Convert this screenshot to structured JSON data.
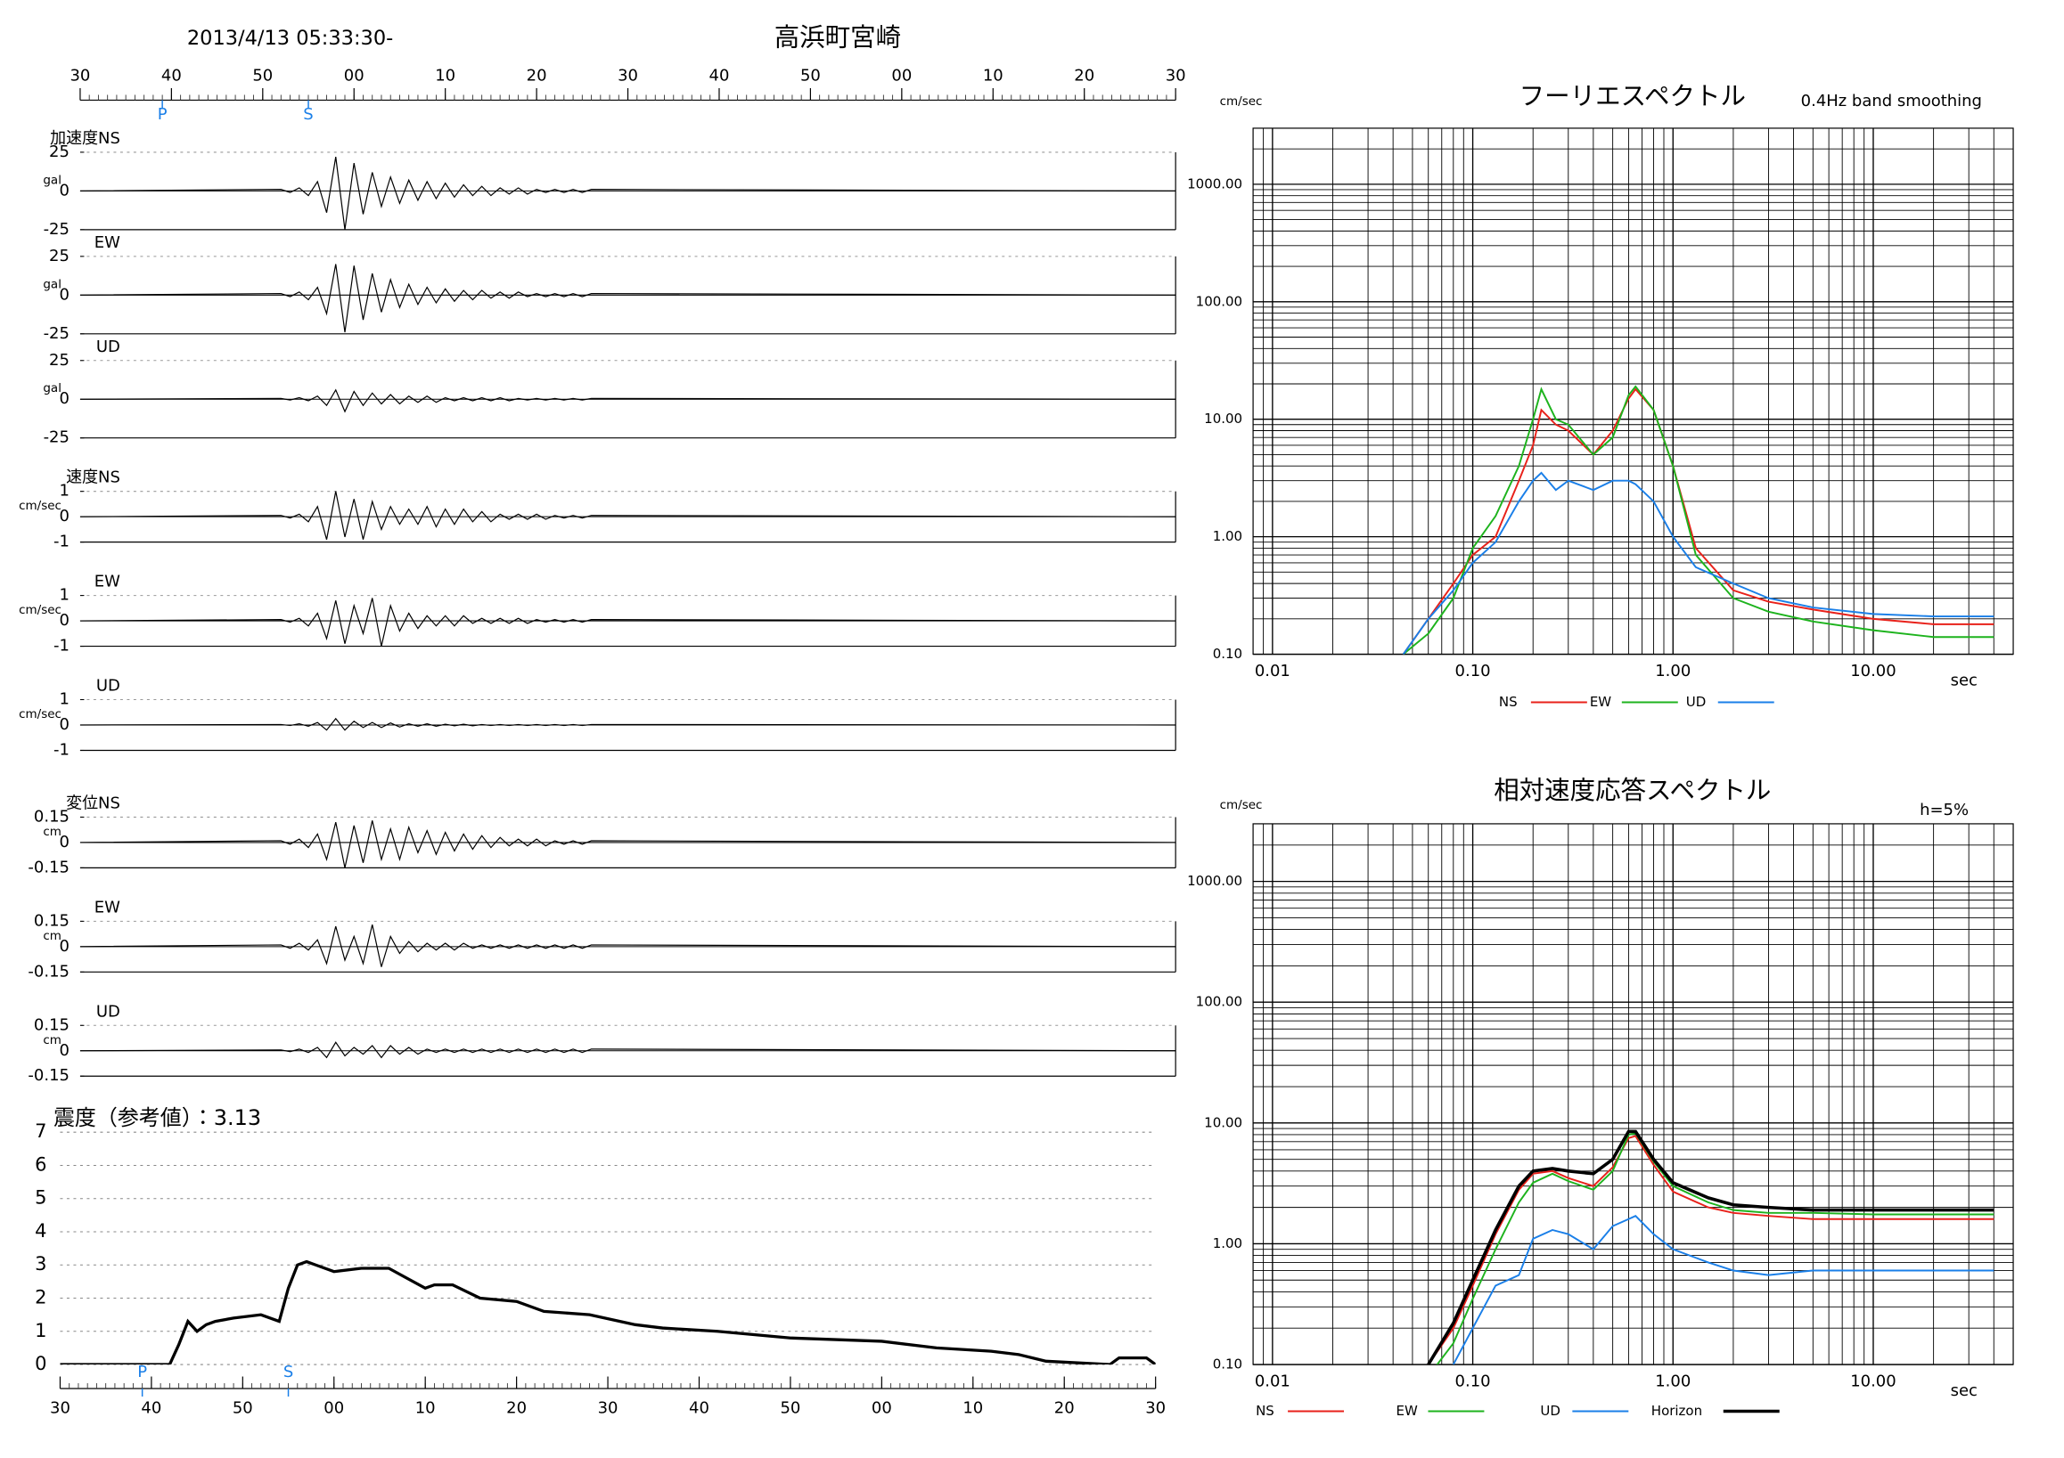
{
  "chart_data": [
    {
      "type": "waveform",
      "title": "2013/4/13 05:33:30-",
      "station": "高浜町宮崎",
      "xlim": [
        0,
        120
      ],
      "xticks": [
        {
          "value": 0,
          "label": "30"
        },
        {
          "value": 10,
          "label": "40"
        },
        {
          "value": 20,
          "label": "50"
        },
        {
          "value": 30,
          "label": "00"
        },
        {
          "value": 40,
          "label": "10"
        },
        {
          "value": 50,
          "label": "20"
        },
        {
          "value": 60,
          "label": "30"
        },
        {
          "value": 70,
          "label": "40"
        },
        {
          "value": 80,
          "label": "50"
        },
        {
          "value": 90,
          "label": "00"
        },
        {
          "value": 100,
          "label": "10"
        },
        {
          "value": 110,
          "label": "20"
        },
        {
          "value": 120,
          "label": "30"
        }
      ],
      "markers": [
        {
          "label": "P",
          "x": 9
        },
        {
          "label": "S",
          "x": 25
        }
      ],
      "color": "#000000",
      "x": [
        0,
        22,
        23,
        24,
        25,
        26,
        27,
        28,
        29,
        30,
        31,
        32,
        33,
        34,
        35,
        36,
        37,
        38,
        39,
        40,
        41,
        42,
        43,
        44,
        45,
        46,
        47,
        48,
        49,
        50,
        51,
        52,
        53,
        54,
        55,
        56,
        120
      ],
      "panels": [
        {
          "label": "加速度NS",
          "unit": "gal",
          "ylim": [
            -25,
            25
          ],
          "yticks": [
            -25,
            0,
            25
          ],
          "values": [
            0,
            1,
            -1,
            2,
            -3,
            6,
            -14,
            22,
            -25,
            18,
            -15,
            12,
            -10,
            9,
            -8,
            7,
            -6,
            6,
            -5,
            5,
            -4,
            4,
            -3,
            3,
            -3,
            2,
            -2,
            2,
            -2,
            1,
            -1,
            1,
            -1,
            1,
            -1,
            1,
            0
          ]
        },
        {
          "label": "EW",
          "unit": "gal",
          "ylim": [
            -25,
            25
          ],
          "yticks": [
            -25,
            0,
            25
          ],
          "values": [
            0,
            1,
            -1,
            2,
            -3,
            5,
            -12,
            20,
            -24,
            19,
            -16,
            14,
            -11,
            10,
            -8,
            7,
            -6,
            5,
            -5,
            4,
            -4,
            3,
            -3,
            3,
            -2,
            2,
            -2,
            2,
            -1,
            1,
            -1,
            1,
            -1,
            1,
            -1,
            1,
            0
          ]
        },
        {
          "label": "UD",
          "unit": "gal",
          "ylim": [
            -25,
            25
          ],
          "yticks": [
            -25,
            0,
            25
          ],
          "values": [
            0,
            0.5,
            -0.5,
            1,
            -1,
            2,
            -4,
            6,
            -8,
            5,
            -4,
            4,
            -3,
            3,
            -3,
            2,
            -2,
            2,
            -2,
            1,
            -1,
            1,
            -1,
            1,
            -1,
            1,
            -1,
            0.5,
            -0.5,
            0.5,
            -0.5,
            0.5,
            -0.5,
            0.5,
            -0.5,
            0.5,
            0
          ]
        },
        {
          "label": "速度NS",
          "unit": "cm/sec",
          "ylim": [
            -1,
            1
          ],
          "yticks": [
            -1,
            0,
            1
          ],
          "values": [
            0,
            0.05,
            -0.05,
            0.1,
            -0.2,
            0.4,
            -0.9,
            1,
            -0.8,
            0.7,
            -0.9,
            0.6,
            -0.5,
            0.4,
            -0.3,
            0.3,
            -0.3,
            0.4,
            -0.4,
            0.3,
            -0.3,
            0.3,
            -0.2,
            0.2,
            -0.2,
            0.1,
            -0.1,
            0.1,
            -0.1,
            0.1,
            -0.1,
            0.05,
            -0.05,
            0.05,
            -0.05,
            0.05,
            0
          ]
        },
        {
          "label": "EW",
          "unit": "cm/sec",
          "ylim": [
            -1,
            1
          ],
          "yticks": [
            -1,
            0,
            1
          ],
          "values": [
            0,
            0.05,
            -0.05,
            0.1,
            -0.2,
            0.3,
            -0.7,
            0.8,
            -0.9,
            0.6,
            -0.5,
            0.9,
            -1,
            0.6,
            -0.4,
            0.3,
            -0.3,
            0.2,
            -0.2,
            0.2,
            -0.2,
            0.2,
            -0.1,
            0.1,
            -0.1,
            0.1,
            -0.1,
            0.1,
            -0.1,
            0.05,
            -0.05,
            0.05,
            -0.05,
            0.05,
            -0.05,
            0.05,
            0
          ]
        },
        {
          "label": "UD",
          "unit": "cm/sec",
          "ylim": [
            -1,
            1
          ],
          "yticks": [
            -1,
            0,
            1
          ],
          "values": [
            0,
            0.02,
            -0.02,
            0.05,
            -0.05,
            0.1,
            -0.2,
            0.25,
            -0.2,
            0.15,
            -0.1,
            0.1,
            -0.1,
            0.08,
            -0.08,
            0.05,
            -0.05,
            0.05,
            -0.05,
            0.03,
            -0.03,
            0.03,
            -0.03,
            0.02,
            -0.02,
            0.02,
            -0.02,
            0.02,
            -0.02,
            0.02,
            -0.02,
            0.02,
            -0.02,
            0.02,
            -0.02,
            0.02,
            0
          ]
        },
        {
          "label": "変位NS",
          "unit": "cm",
          "ylim": [
            -0.15,
            0.15
          ],
          "yticks": [
            -0.15,
            0,
            0.15
          ],
          "values": [
            0,
            0.01,
            -0.01,
            0.02,
            -0.03,
            0.05,
            -0.1,
            0.12,
            -0.15,
            0.1,
            -0.12,
            0.13,
            -0.1,
            0.08,
            -0.1,
            0.09,
            -0.06,
            0.07,
            -0.07,
            0.06,
            -0.05,
            0.05,
            -0.04,
            0.04,
            -0.03,
            0.03,
            -0.02,
            0.02,
            -0.02,
            0.02,
            -0.02,
            0.01,
            -0.01,
            0.01,
            -0.01,
            0.01,
            0
          ]
        },
        {
          "label": "EW",
          "unit": "cm",
          "ylim": [
            -0.15,
            0.15
          ],
          "yticks": [
            -0.15,
            0,
            0.15
          ],
          "values": [
            0,
            0.01,
            -0.01,
            0.02,
            -0.02,
            0.04,
            -0.1,
            0.12,
            -0.08,
            0.06,
            -0.1,
            0.13,
            -0.12,
            0.06,
            -0.04,
            0.03,
            -0.03,
            0.02,
            -0.02,
            0.02,
            -0.02,
            0.02,
            -0.01,
            0.01,
            -0.01,
            0.01,
            -0.01,
            0.01,
            -0.01,
            0.01,
            -0.01,
            0.01,
            -0.01,
            0.01,
            -0.01,
            0.01,
            0
          ]
        },
        {
          "label": "UD",
          "unit": "cm",
          "ylim": [
            -0.15,
            0.15
          ],
          "yticks": [
            -0.15,
            0,
            0.15
          ],
          "values": [
            0,
            0.005,
            -0.005,
            0.01,
            -0.01,
            0.02,
            -0.04,
            0.05,
            -0.03,
            0.02,
            -0.02,
            0.03,
            -0.04,
            0.03,
            -0.02,
            0.02,
            -0.02,
            0.01,
            -0.01,
            0.01,
            -0.01,
            0.01,
            -0.01,
            0.01,
            -0.01,
            0.01,
            -0.01,
            0.01,
            -0.01,
            0.01,
            -0.01,
            0.01,
            -0.01,
            0.01,
            -0.01,
            0.01,
            0
          ]
        }
      ]
    },
    {
      "type": "line",
      "title": "震度（参考値）：3.13",
      "log_scale": false,
      "grid": true,
      "color": "#000000",
      "xlim": [
        0,
        120
      ],
      "xticks": [
        {
          "value": 0,
          "label": "30"
        },
        {
          "value": 10,
          "label": "40"
        },
        {
          "value": 20,
          "label": "50"
        },
        {
          "value": 30,
          "label": "00"
        },
        {
          "value": 40,
          "label": "10"
        },
        {
          "value": 50,
          "label": "20"
        },
        {
          "value": 60,
          "label": "30"
        },
        {
          "value": 70,
          "label": "40"
        },
        {
          "value": 80,
          "label": "50"
        },
        {
          "value": 90,
          "label": "00"
        },
        {
          "value": 100,
          "label": "10"
        },
        {
          "value": 110,
          "label": "20"
        },
        {
          "value": 120,
          "label": "30"
        }
      ],
      "ylim": [
        0,
        7
      ],
      "yticks": [
        0,
        1,
        2,
        3,
        4,
        5,
        6,
        7
      ],
      "markers": [
        {
          "label": "P",
          "x": 9
        },
        {
          "label": "S",
          "x": 25
        }
      ],
      "x": [
        0,
        12,
        13,
        14,
        15,
        16,
        17,
        19,
        22,
        24,
        25,
        26,
        27,
        28,
        30,
        33,
        36,
        38,
        40,
        41,
        43,
        46,
        50,
        53,
        58,
        63,
        66,
        72,
        80,
        90,
        96,
        102,
        105,
        108,
        115,
        116,
        119,
        120
      ],
      "values": [
        0,
        0,
        0.6,
        1.3,
        1.0,
        1.2,
        1.3,
        1.4,
        1.5,
        1.3,
        2.3,
        3.0,
        3.1,
        3.0,
        2.8,
        2.9,
        2.9,
        2.6,
        2.3,
        2.4,
        2.4,
        2.0,
        1.9,
        1.6,
        1.5,
        1.2,
        1.1,
        1.0,
        0.8,
        0.7,
        0.5,
        0.4,
        0.3,
        0.1,
        0,
        0.2,
        0.2,
        0
      ]
    },
    {
      "type": "line",
      "title": "フーリエスペクトル",
      "subtitle": "0.4Hz band smoothing",
      "ylabel": "cm/sec",
      "xlabel": "sec",
      "log_scale": true,
      "grid": true,
      "xlim": [
        0.008,
        50
      ],
      "xticks": [
        {
          "value": 0.01,
          "label": "0.01"
        },
        {
          "value": 0.1,
          "label": "0.10"
        },
        {
          "value": 1,
          "label": "1.00"
        },
        {
          "value": 10,
          "label": "10.00"
        }
      ],
      "ylim": [
        0.1,
        3000
      ],
      "yticks": [
        {
          "value": 0.1,
          "label": "0.10"
        },
        {
          "value": 1,
          "label": "1.00"
        },
        {
          "value": 10,
          "label": "10.00"
        },
        {
          "value": 100,
          "label": "100.00"
        },
        {
          "value": 1000,
          "label": "1000.00"
        }
      ],
      "x": [
        0.045,
        0.06,
        0.08,
        0.1,
        0.13,
        0.17,
        0.2,
        0.22,
        0.26,
        0.3,
        0.4,
        0.5,
        0.6,
        0.65,
        0.8,
        1,
        1.3,
        2,
        3,
        5,
        10,
        20,
        40
      ],
      "series": [
        {
          "name": "NS",
          "color": "#e8211a",
          "values": [
            0.1,
            0.2,
            0.4,
            0.7,
            1.0,
            3,
            6,
            12,
            9,
            8,
            5,
            8,
            15,
            18,
            12,
            4,
            0.8,
            0.35,
            0.28,
            0.24,
            0.2,
            0.18,
            0.18
          ]
        },
        {
          "name": "EW",
          "color": "#1db31d",
          "values": [
            0.1,
            0.15,
            0.3,
            0.8,
            1.5,
            4,
            10,
            18,
            10,
            9,
            5,
            7,
            16,
            19,
            12,
            4,
            0.7,
            0.3,
            0.23,
            0.19,
            0.16,
            0.14,
            0.14
          ]
        },
        {
          "name": "UD",
          "color": "#1a7fe8",
          "values": [
            0.1,
            0.2,
            0.35,
            0.6,
            0.9,
            2,
            3,
            3.5,
            2.5,
            3,
            2.5,
            3,
            3,
            2.8,
            2,
            1,
            0.55,
            0.4,
            0.3,
            0.25,
            0.22,
            0.21,
            0.21
          ]
        }
      ]
    },
    {
      "type": "line",
      "title": "相対速度応答スペクトル",
      "subtitle": "h=5%",
      "ylabel": "cm/sec",
      "xlabel": "sec",
      "log_scale": true,
      "grid": true,
      "xlim": [
        0.008,
        50
      ],
      "xticks": [
        {
          "value": 0.01,
          "label": "0.01"
        },
        {
          "value": 0.1,
          "label": "0.10"
        },
        {
          "value": 1,
          "label": "1.00"
        },
        {
          "value": 10,
          "label": "10.00"
        }
      ],
      "ylim": [
        0.1,
        3000
      ],
      "yticks": [
        {
          "value": 0.1,
          "label": "0.10"
        },
        {
          "value": 1,
          "label": "1.00"
        },
        {
          "value": 10,
          "label": "10.00"
        },
        {
          "value": 100,
          "label": "100.00"
        },
        {
          "value": 1000,
          "label": "1000.00"
        }
      ],
      "x": [
        0.06,
        0.08,
        0.1,
        0.13,
        0.17,
        0.2,
        0.25,
        0.3,
        0.4,
        0.5,
        0.6,
        0.65,
        0.8,
        1,
        1.5,
        2,
        3,
        5,
        10,
        20,
        40
      ],
      "series": [
        {
          "name": "NS",
          "color": "#e8211a",
          "values": [
            0.1,
            0.2,
            0.45,
            1.2,
            2.8,
            3.8,
            4.0,
            3.5,
            3.0,
            4.3,
            7.5,
            7.8,
            4.5,
            2.7,
            2.0,
            1.8,
            1.7,
            1.6,
            1.6,
            1.6,
            1.6
          ]
        },
        {
          "name": "EW",
          "color": "#1db31d",
          "values": [
            0.08,
            0.15,
            0.35,
            0.9,
            2.2,
            3.2,
            3.8,
            3.3,
            2.8,
            4,
            8,
            8.2,
            4.8,
            3,
            2.2,
            1.9,
            1.8,
            1.8,
            1.75,
            1.75,
            1.75
          ]
        },
        {
          "name": "UD",
          "color": "#1a7fe8",
          "values": [
            null,
            0.1,
            0.2,
            0.45,
            0.55,
            1.1,
            1.3,
            1.2,
            0.9,
            1.4,
            1.6,
            1.7,
            1.2,
            0.9,
            0.7,
            0.6,
            0.55,
            0.6,
            0.6,
            0.6,
            0.6
          ]
        },
        {
          "name": "Horizon",
          "color": "#000000",
          "values": [
            0.1,
            0.22,
            0.5,
            1.3,
            3.0,
            4.0,
            4.2,
            4.0,
            3.8,
            5,
            8.5,
            8.5,
            5,
            3.2,
            2.4,
            2.1,
            2.0,
            1.9,
            1.9,
            1.9,
            1.9
          ]
        }
      ]
    }
  ]
}
